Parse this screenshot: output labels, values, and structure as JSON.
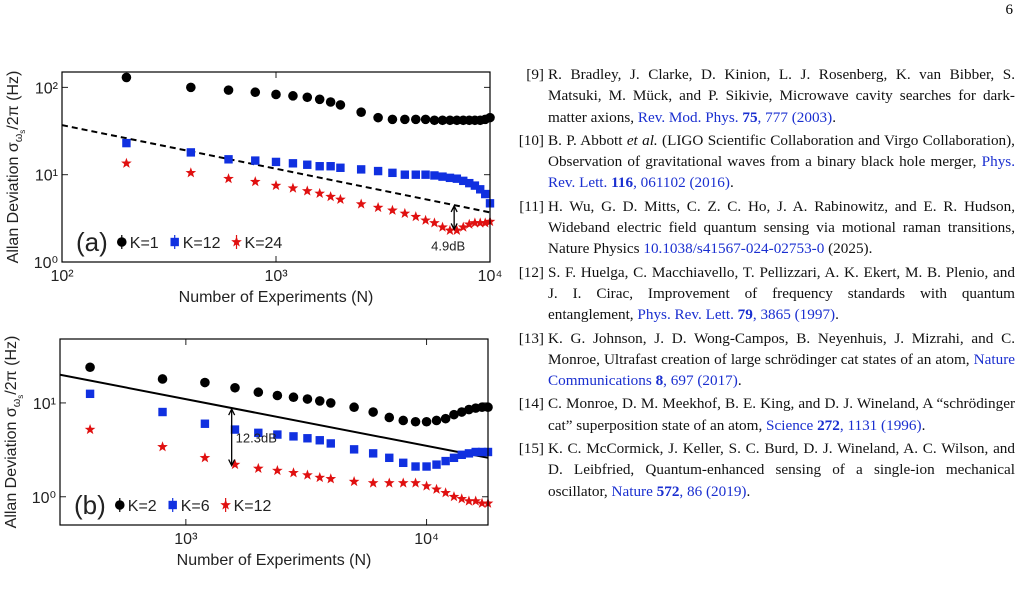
{
  "page_number": "6",
  "chart_data": [
    {
      "type": "scatter",
      "log_x": true,
      "log_y": true,
      "panel_label": "(a)",
      "xlabel": "Number of Experiments (N)",
      "ylabel": {
        "main": "Allan Deviation σ",
        "sub": "ω",
        "subsub": "s",
        "tail": "/2π (Hz)"
      },
      "xlim": [
        100,
        10000
      ],
      "ylim": [
        1,
        150
      ],
      "xticks": [
        {
          "value": 100,
          "label": "10²"
        },
        {
          "value": 1000,
          "label": "10³"
        },
        {
          "value": 10000,
          "label": "10⁴"
        }
      ],
      "yticks": [
        {
          "value": 1,
          "label": "10⁰"
        },
        {
          "value": 10,
          "label": "10¹"
        },
        {
          "value": 100,
          "label": "10²"
        }
      ],
      "legend": "lower left",
      "x": [
        200,
        400,
        600,
        800,
        1000,
        1200,
        1400,
        1600,
        1800,
        2000,
        2500,
        3000,
        3500,
        4000,
        4500,
        5000,
        5500,
        6000,
        6500,
        7000,
        7500,
        8000,
        8500,
        9000,
        9500,
        10000
      ],
      "series": [
        {
          "name": "K=1",
          "color": "#000000",
          "marker": "circle",
          "values": [
            130,
            100,
            93,
            88,
            83,
            80,
            77,
            73,
            68,
            63,
            52,
            45,
            43,
            43,
            43,
            43,
            42,
            42,
            42,
            42,
            42,
            42,
            42,
            42,
            43,
            45
          ]
        },
        {
          "name": "K=12",
          "color": "#1030e0",
          "marker": "square",
          "values": [
            23,
            18,
            15,
            14.5,
            14,
            13.5,
            13,
            12.5,
            12.5,
            12,
            11.5,
            11,
            10.5,
            10,
            10,
            10,
            9.8,
            9.5,
            9.2,
            9,
            8.5,
            8,
            7.5,
            6.8,
            6,
            4.7
          ]
        },
        {
          "name": "K=24",
          "color": "#e01010",
          "marker": "star",
          "values": [
            13.5,
            10.5,
            9,
            8.3,
            7.5,
            7,
            6.5,
            6.1,
            5.6,
            5.2,
            4.6,
            4.2,
            3.9,
            3.6,
            3.3,
            3,
            2.8,
            2.5,
            2.3,
            2.3,
            2.5,
            2.7,
            2.8,
            2.8,
            2.8,
            2.9
          ]
        }
      ],
      "reference_line": {
        "style": "dashed",
        "x": [
          100,
          10000
        ],
        "values": [
          37,
          3.7
        ]
      },
      "annotation": {
        "text": "4.9dB",
        "x": 6800,
        "values": [
          4.5,
          2.3
        ]
      }
    },
    {
      "type": "scatter",
      "log_x": true,
      "log_y": true,
      "panel_label": "(b)",
      "xlabel": "Number of Experiments (N)",
      "ylabel": {
        "main": "Allan Deviation σ",
        "sub": "ω",
        "subsub": "s",
        "tail": "/2π (Hz)"
      },
      "xlim": [
        300,
        18000
      ],
      "ylim": [
        0.5,
        48
      ],
      "xticks": [
        {
          "value": 1000,
          "label": "10³"
        },
        {
          "value": 10000,
          "label": "10⁴"
        }
      ],
      "yticks": [
        {
          "value": 1,
          "label": "10⁰"
        },
        {
          "value": 10,
          "label": "10¹"
        }
      ],
      "legend": "lower left",
      "x": [
        400,
        800,
        1200,
        1600,
        2000,
        2400,
        2800,
        3200,
        3600,
        4000,
        5000,
        6000,
        7000,
        8000,
        9000,
        10000,
        11000,
        12000,
        13000,
        14000,
        15000,
        16000,
        17000,
        18000
      ],
      "series": [
        {
          "name": "K=2",
          "color": "#000000",
          "marker": "circle",
          "values": [
            24,
            18,
            16.5,
            14.5,
            13,
            12,
            11.5,
            11,
            10.5,
            10,
            9,
            8,
            7,
            6.5,
            6.3,
            6.3,
            6.5,
            6.8,
            7.5,
            8,
            8.5,
            8.8,
            9,
            9
          ]
        },
        {
          "name": "K=6",
          "color": "#1030e0",
          "marker": "square",
          "values": [
            12.5,
            8,
            6,
            5.2,
            4.8,
            4.6,
            4.4,
            4.2,
            4,
            3.7,
            3.2,
            2.9,
            2.6,
            2.3,
            2.1,
            2.1,
            2.2,
            2.4,
            2.6,
            2.8,
            2.9,
            3,
            3,
            3
          ]
        },
        {
          "name": "K=12",
          "color": "#e01010",
          "marker": "star",
          "values": [
            5.2,
            3.4,
            2.6,
            2.2,
            2,
            1.9,
            1.8,
            1.7,
            1.6,
            1.55,
            1.45,
            1.4,
            1.4,
            1.4,
            1.4,
            1.3,
            1.2,
            1.1,
            1.0,
            0.95,
            0.9,
            0.9,
            0.85,
            0.85
          ]
        }
      ],
      "reference_line": {
        "style": "solid",
        "x": [
          300,
          18000
        ],
        "values": [
          20,
          2.6
        ]
      },
      "annotation": {
        "text": "12.3dB",
        "x": 1550,
        "values": [
          8.8,
          2.1
        ]
      }
    }
  ],
  "references": [
    {
      "label": "[9]",
      "parts": [
        {
          "style": "plain",
          "text": "R. Bradley, J. Clarke, D. Kinion, L. J. Rosenberg, K. van Bibber, S. Matsuki, M. Mück, and P. Sikivie, Microwave cavity searches for dark-matter axions, "
        },
        {
          "style": "link",
          "text": "Rev. Mod. Phys. "
        },
        {
          "style": "link-bold",
          "text": "75"
        },
        {
          "style": "link",
          "text": ", 777 (2003)"
        },
        {
          "style": "plain",
          "text": "."
        }
      ]
    },
    {
      "label": "[10]",
      "parts": [
        {
          "style": "plain",
          "text": "B. P. Abbott "
        },
        {
          "style": "italic",
          "text": "et al."
        },
        {
          "style": "plain",
          "text": " (LIGO Scientific Collaboration and Virgo Collaboration), Observation of gravitational waves from a binary black hole merger, "
        },
        {
          "style": "link",
          "text": "Phys. Rev. Lett. "
        },
        {
          "style": "link-bold",
          "text": "116"
        },
        {
          "style": "link",
          "text": ", 061102 (2016)"
        },
        {
          "style": "plain",
          "text": "."
        }
      ]
    },
    {
      "label": "[11]",
      "parts": [
        {
          "style": "plain",
          "text": "H. Wu, G. D. Mitts, C. Z. C. Ho, J. A. Rabinowitz, and E. R. Hudson, Wideband electric field quantum sensing via motional raman transitions, Nature Physics "
        },
        {
          "style": "link",
          "text": "10.1038/s41567-024-02753-0"
        },
        {
          "style": "plain",
          "text": " (2025)."
        }
      ]
    },
    {
      "label": "[12]",
      "parts": [
        {
          "style": "plain",
          "text": "S. F. Huelga, C. Macchiavello, T. Pellizzari, A. K. Ekert, M. B. Plenio, and J. I. Cirac, Improvement of frequency standards with quantum entanglement, "
        },
        {
          "style": "link",
          "text": "Phys. Rev. Lett. "
        },
        {
          "style": "link-bold",
          "text": "79"
        },
        {
          "style": "link",
          "text": ", 3865 (1997)"
        },
        {
          "style": "plain",
          "text": "."
        }
      ]
    },
    {
      "label": "[13]",
      "parts": [
        {
          "style": "plain",
          "text": "K. G. Johnson, J. D. Wong-Campos, B. Neyenhuis, J. Mizrahi, and C. Monroe, Ultrafast creation of large schrödinger cat states of an atom, "
        },
        {
          "style": "link",
          "text": "Nature Communications "
        },
        {
          "style": "link-bold",
          "text": "8"
        },
        {
          "style": "link",
          "text": ", 697 (2017)"
        },
        {
          "style": "plain",
          "text": "."
        }
      ]
    },
    {
      "label": "[14]",
      "parts": [
        {
          "style": "plain",
          "text": "C. Monroe, D. M. Meekhof, B. E. King, and D. J. Wineland, A “schrödinger cat” superposition state of an atom, "
        },
        {
          "style": "link",
          "text": "Science "
        },
        {
          "style": "link-bold",
          "text": "272"
        },
        {
          "style": "link",
          "text": ", 1131 (1996)"
        },
        {
          "style": "plain",
          "text": "."
        }
      ]
    },
    {
      "label": "[15]",
      "parts": [
        {
          "style": "plain",
          "text": "K. C. McCormick, J. Keller, S. C. Burd, D. J. Wineland, A. C. Wilson, and D. Leibfried, Quantum-enhanced sensing of a single-ion mechanical oscillator, "
        },
        {
          "style": "link",
          "text": "Nature "
        },
        {
          "style": "link-bold",
          "text": "572"
        },
        {
          "style": "link",
          "text": ", 86 (2019)"
        },
        {
          "style": "plain",
          "text": "."
        }
      ]
    }
  ]
}
